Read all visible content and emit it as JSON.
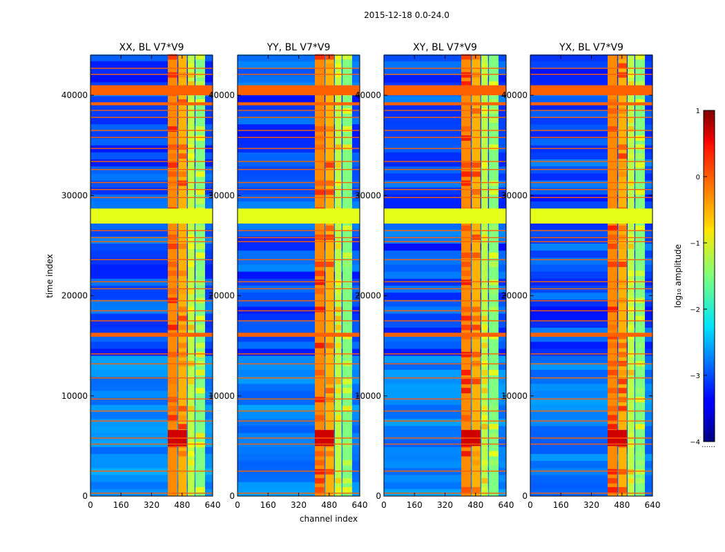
{
  "figure": {
    "suptitle": "2015-12-18 0.0-24.0",
    "xlabel": "channel index",
    "ylabel": "time index",
    "colorbar_label": "log₁₀ amplitude",
    "colorbar_ticks": [
      "1",
      "0",
      "−1",
      "−2",
      "−3",
      "−4"
    ],
    "colorbar_footer": "……",
    "x_ticks": [
      "0",
      "160",
      "320",
      "480",
      "640"
    ],
    "y_ticks": [
      "0",
      "10000",
      "20000",
      "30000",
      "40000"
    ]
  },
  "chart_data": {
    "type": "heatmap",
    "title": "2015-12-18 0.0-24.0",
    "xlabel": "channel index",
    "ylabel": "time index",
    "xlim": [
      0,
      640
    ],
    "ylim": [
      0,
      44000
    ],
    "x_ticks": [
      0,
      160,
      320,
      480,
      640
    ],
    "y_ticks": [
      0,
      10000,
      20000,
      30000,
      40000
    ],
    "colorbar": {
      "label": "log10 amplitude",
      "vmin": -4,
      "vmax": 1,
      "ticks": [
        1,
        0,
        -1,
        -2,
        -3,
        -4
      ],
      "colormap": "jet"
    },
    "panels": [
      {
        "title": "XX, BL V7*V9",
        "pol": "XX"
      },
      {
        "title": "YY, BL V7*V9",
        "pol": "YY"
      },
      {
        "title": "XY, BL V7*V9",
        "pol": "XY"
      },
      {
        "title": "YX, BL V7*V9",
        "pol": "YX"
      }
    ],
    "bright_channel_bands": [
      {
        "from": 405,
        "to": 455,
        "level": -0.3
      },
      {
        "from": 460,
        "to": 505,
        "level": -0.5
      },
      {
        "from": 510,
        "to": 545,
        "level": -1.2
      },
      {
        "from": 550,
        "to": 600,
        "level": -1.5
      }
    ],
    "flagged_time_bands": [
      {
        "from": 27200,
        "to": 28700,
        "level": -1.0
      },
      {
        "from": 15900,
        "to": 16300,
        "level": -0.1
      },
      {
        "from": 40000,
        "to": 41000,
        "level": -0.1
      },
      {
        "from": 39000,
        "to": 39300,
        "level": -0.1
      }
    ],
    "flagged_time_lines": [
      300,
      2500,
      5200,
      5800,
      7500,
      8500,
      9700,
      11800,
      13200,
      14200,
      17500,
      18500,
      19500,
      20700,
      21400,
      23600,
      25400,
      25800,
      26500,
      29800,
      30600,
      31300,
      32600,
      33400,
      34700,
      35800,
      36500,
      37800,
      38500,
      42100,
      42700
    ],
    "strong_event": {
      "time_from": 5000,
      "time_to": 6600,
      "level": 0.6
    },
    "background_level": -3.2
  }
}
